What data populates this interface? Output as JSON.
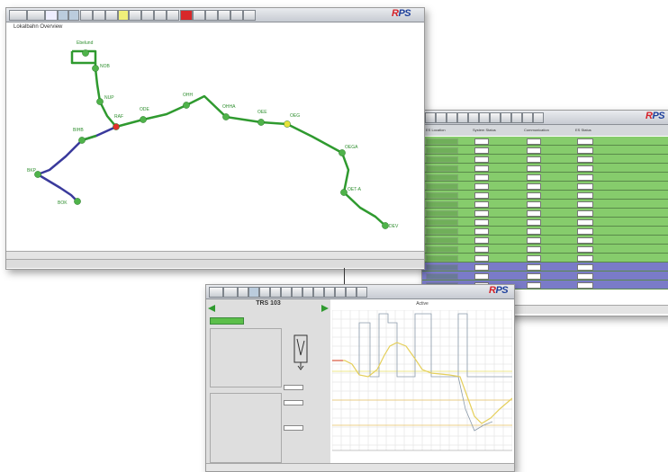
{
  "colors": {
    "green_line": "#2f9a2f",
    "blue_line": "#3a3a9c",
    "red_station": "#e1302a",
    "yellow_station": "#e6e23a",
    "green_row": "#86cc6c",
    "blue_row": "#7a7bc8",
    "header_bg": "#cfd3d8"
  },
  "logo": {
    "left": "R",
    "mid": "PS"
  },
  "overview": {
    "title": "Lokalbahn Overview",
    "stations": [
      {
        "name": "Ebelund",
        "color": "green"
      },
      {
        "name": "NOB",
        "color": "green"
      },
      {
        "name": "NUP",
        "color": "green"
      },
      {
        "name": "RAF",
        "color": "red"
      },
      {
        "name": "ODE",
        "color": "green"
      },
      {
        "name": "OHH",
        "color": "green"
      },
      {
        "name": "OHHA",
        "color": "green"
      },
      {
        "name": "OEE",
        "color": "green"
      },
      {
        "name": "OEG",
        "color": "yellow"
      },
      {
        "name": "OEGA",
        "color": "green"
      },
      {
        "name": "OET-A",
        "color": "green"
      },
      {
        "name": "DEV",
        "color": "green"
      },
      {
        "name": "BIHB",
        "color": "green"
      },
      {
        "name": "BKP",
        "color": "green"
      },
      {
        "name": "BOK",
        "color": "green"
      }
    ]
  },
  "table": {
    "headers": [
      "ES Location",
      "System Status",
      "Communication",
      "ES Status"
    ]
  },
  "detail": {
    "title": "TRS 103",
    "chart_title": "Active"
  }
}
